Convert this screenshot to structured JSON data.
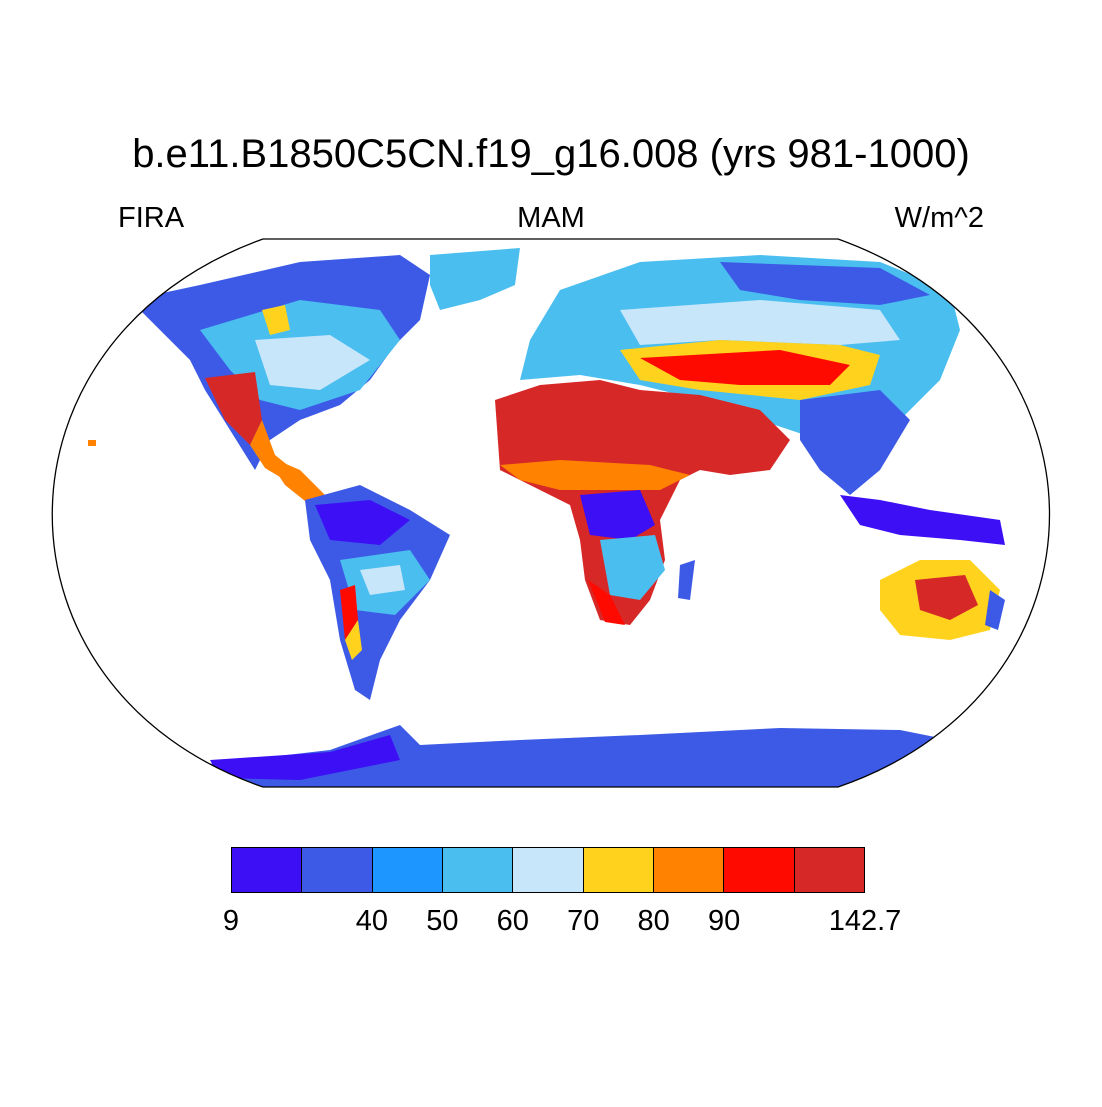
{
  "title": "b.e11.B1850C5CN.f19_g16.008 (yrs 981-1000)",
  "left_label": "FIRA",
  "center_label": "MAM",
  "right_label": "W/m^2",
  "colorbar": {
    "colors": [
      "#3c0ff5",
      "#3c5ae6",
      "#1e96ff",
      "#4bbef0",
      "#c8e6fa",
      "#ffd21e",
      "#ff8200",
      "#ff0a00",
      "#d72828"
    ],
    "labels": [
      "9",
      "",
      "40",
      "50",
      "60",
      "70",
      "80",
      "90",
      "",
      "142.7"
    ]
  },
  "map": {
    "projection": "Robinson",
    "variable": "FIRA",
    "season": "MAM",
    "units": "W/m^2"
  }
}
